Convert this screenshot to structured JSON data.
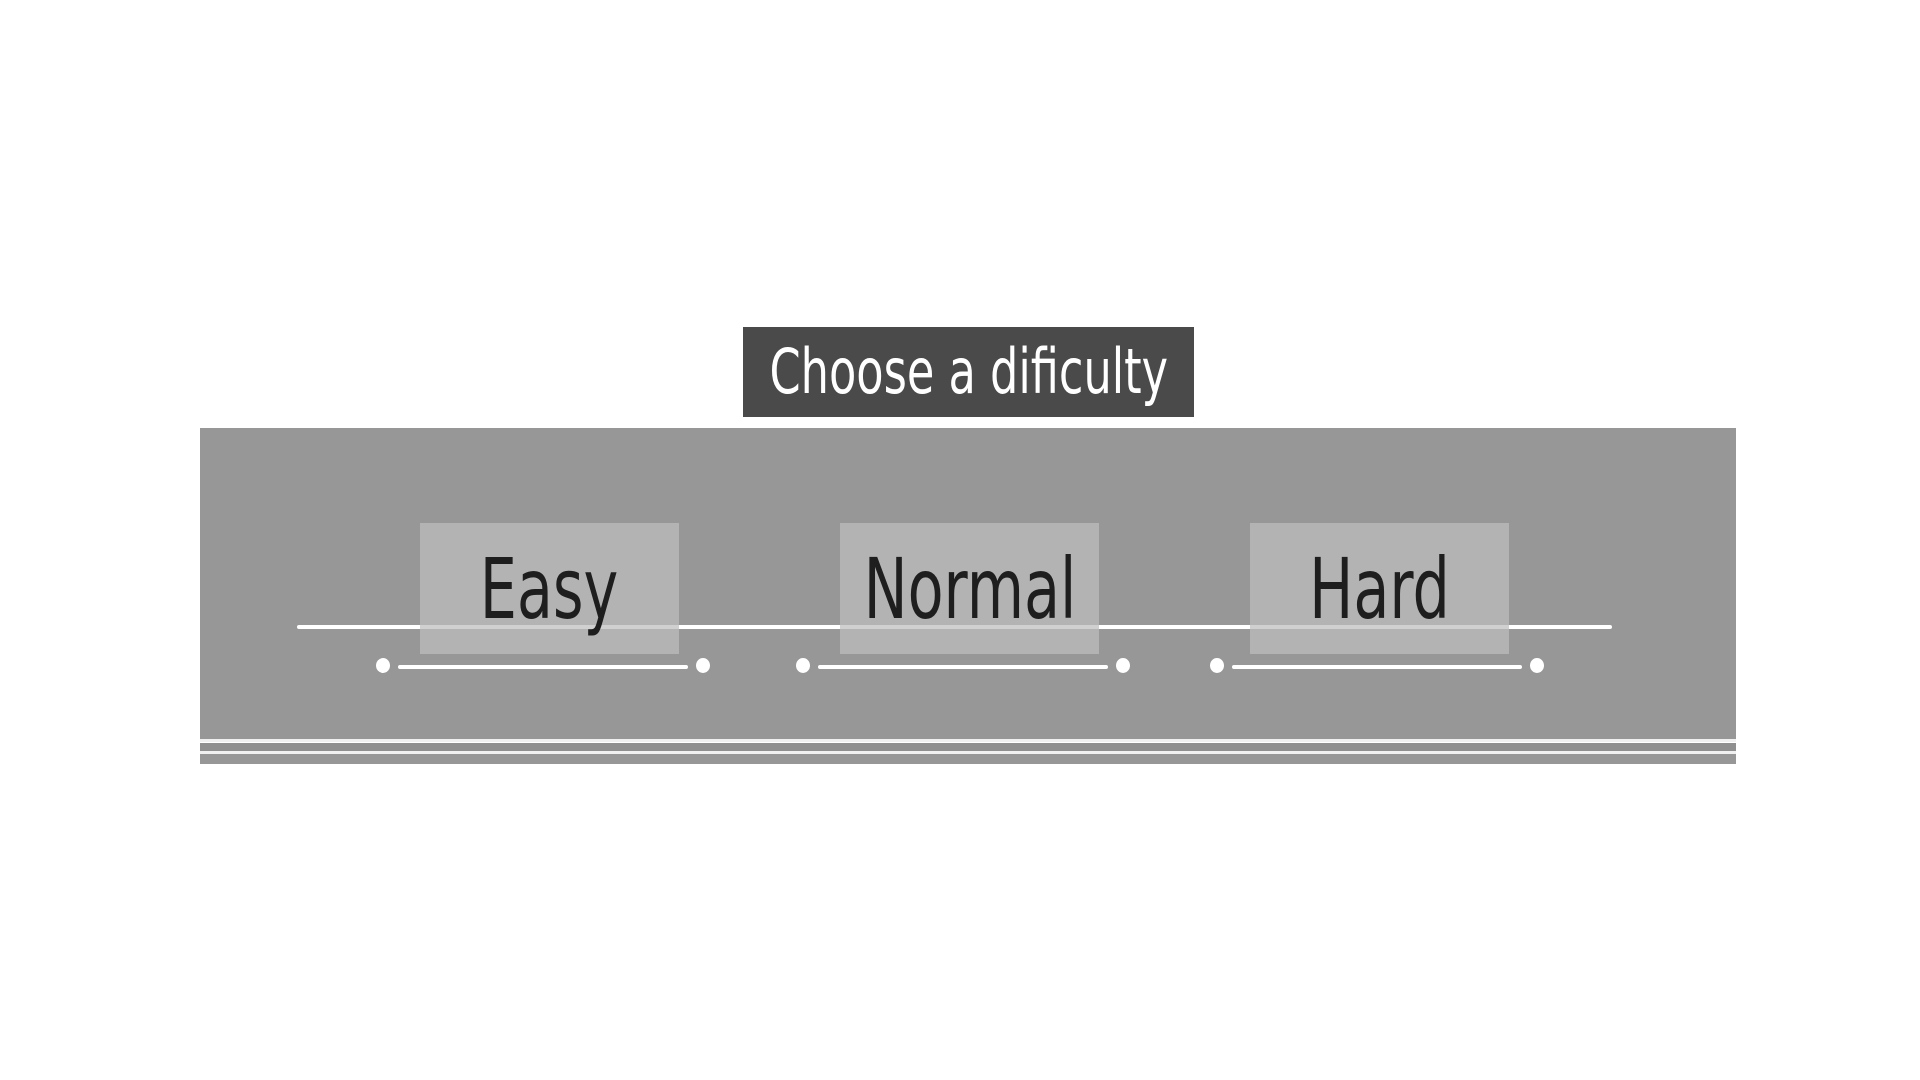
{
  "title": "Choose a dificulty",
  "buttons": [
    {
      "label": "Easy"
    },
    {
      "label": "Normal"
    },
    {
      "label": "Hard"
    }
  ],
  "colors": {
    "background": "#ffffff",
    "title_bg": "#4a4a4a",
    "title_text": "#ffffff",
    "panel": "#979797",
    "button_bg": "#bebebe",
    "button_text": "#1e1e1e",
    "lines": "#ffffff"
  }
}
